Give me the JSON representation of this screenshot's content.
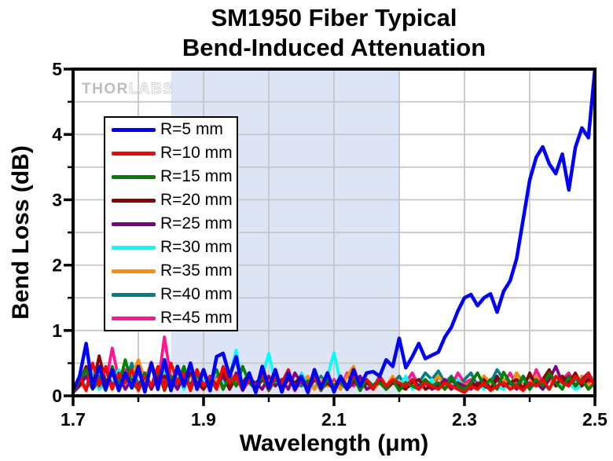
{
  "title": {
    "line1": "SM1950 Fiber Typical",
    "line2": "Bend-Induced Attenuation"
  },
  "watermark": {
    "part1": "THOR",
    "part2": "LABS"
  },
  "colors": {
    "background": "#FFFFFF",
    "axis": "#000000",
    "grid": "#C6C6C6",
    "band": "#DCE4F5",
    "watermark_solid": "#BDBDBD",
    "watermark_outline": "#CFCFCF"
  },
  "legend": {
    "entries": [
      {
        "label": "R=5 mm",
        "color": "#0000FF"
      },
      {
        "label": "R=10 mm",
        "color": "#FF0000"
      },
      {
        "label": "R=15 mm",
        "color": "#008000"
      },
      {
        "label": "R=20 mm",
        "color": "#8B0000"
      },
      {
        "label": "R=25 mm",
        "color": "#800080"
      },
      {
        "label": "R=30 mm",
        "color": "#00FFFF"
      },
      {
        "label": "R=35 mm",
        "color": "#FF8C00"
      },
      {
        "label": "R=40 mm",
        "color": "#008080"
      },
      {
        "label": "R=45 mm",
        "color": "#FF1493"
      }
    ]
  },
  "chart_data": {
    "type": "line",
    "title": "SM1950 Fiber Typical Bend-Induced Attenuation",
    "xlabel": "Wavelength (μm)",
    "ylabel": "Bend Loss (dB)",
    "xlim": [
      1.7,
      2.5
    ],
    "ylim": [
      0,
      5
    ],
    "x_major_ticks": [
      1.7,
      1.9,
      2.1,
      2.3,
      2.5
    ],
    "x_minor_ticks": [
      1.8,
      2.0,
      2.2,
      2.4
    ],
    "y_major_ticks": [
      0,
      1,
      2,
      3,
      4,
      5
    ],
    "y_minor_ticks": [
      0.5,
      1.5,
      2.5,
      3.5,
      4.5
    ],
    "x_tick_labels": [
      "1.7",
      "1.9",
      "2.1",
      "2.3",
      "2.5"
    ],
    "y_tick_labels": [
      "0",
      "1",
      "2",
      "3",
      "4",
      "5"
    ],
    "grid": {
      "on": true,
      "x_step": 0.1,
      "y_step": 0.5
    },
    "shaded_band": {
      "x_start": 1.85,
      "x_end": 2.2
    },
    "legend_position": "upper-left-inside",
    "x_start": 1.7,
    "x_step": 0.01,
    "series": [
      {
        "name": "R=5 mm",
        "color": "#0000FF",
        "stroke_width": 4.5,
        "values": [
          0.08,
          0.3,
          0.8,
          0.12,
          0.45,
          0.1,
          0.4,
          0.08,
          0.35,
          0.12,
          0.45,
          0.06,
          0.5,
          0.1,
          0.55,
          0.08,
          0.45,
          0.15,
          0.5,
          0.1,
          0.4,
          0.08,
          0.6,
          0.65,
          0.3,
          0.6,
          0.1,
          0.35,
          0.05,
          0.45,
          0.12,
          0.4,
          0.06,
          0.35,
          0.1,
          0.3,
          0.05,
          0.4,
          0.12,
          0.35,
          0.06,
          0.3,
          0.1,
          0.4,
          0.15,
          0.35,
          0.37,
          0.3,
          0.55,
          0.45,
          0.88,
          0.43,
          0.6,
          0.8,
          0.57,
          0.62,
          0.67,
          0.9,
          1.05,
          1.3,
          1.5,
          1.55,
          1.38,
          1.5,
          1.56,
          1.28,
          1.6,
          1.76,
          2.1,
          2.7,
          3.3,
          3.65,
          3.81,
          3.55,
          3.4,
          3.7,
          3.15,
          3.8,
          4.1,
          3.95,
          5.0
        ]
      },
      {
        "name": "R=10 mm",
        "color": "#FF0000",
        "stroke_width": 3.8,
        "values": [
          0.1,
          0.3,
          0.08,
          0.5,
          0.15,
          0.45,
          0.1,
          0.35,
          0.2,
          0.4,
          0.08,
          0.3,
          0.15,
          0.45,
          0.1,
          0.5,
          0.2,
          0.35,
          0.08,
          0.4,
          0.15,
          0.3,
          0.1,
          0.45,
          0.2,
          0.3,
          0.08,
          0.25,
          0.15,
          0.35,
          0.1,
          0.3,
          0.2,
          0.4,
          0.08,
          0.25,
          0.15,
          0.3,
          0.1,
          0.35,
          0.08,
          0.25,
          0.15,
          0.3,
          0.2,
          0.25,
          0.1,
          0.3,
          0.15,
          0.25,
          0.2,
          0.15,
          0.25,
          0.1,
          0.2,
          0.15,
          0.1,
          0.2,
          0.15,
          0.1,
          0.05,
          0.15,
          0.1,
          0.2,
          0.08,
          0.15,
          0.2,
          0.1,
          0.15,
          0.08,
          0.2,
          0.15,
          0.25,
          0.1,
          0.3,
          0.2,
          0.15,
          0.3,
          0.2,
          0.35,
          0.15
        ]
      },
      {
        "name": "R=15 mm",
        "color": "#008000",
        "stroke_width": 3.8,
        "values": [
          0.05,
          0.25,
          0.4,
          0.1,
          0.3,
          0.08,
          0.45,
          0.15,
          0.55,
          0.2,
          0.1,
          0.35,
          0.15,
          0.4,
          0.08,
          0.3,
          0.2,
          0.45,
          0.1,
          0.35,
          0.15,
          0.25,
          0.4,
          0.1,
          0.3,
          0.15,
          0.45,
          0.2,
          0.1,
          0.3,
          0.08,
          0.25,
          0.15,
          0.35,
          0.1,
          0.25,
          0.2,
          0.3,
          0.08,
          0.25,
          0.15,
          0.2,
          0.1,
          0.3,
          0.08,
          0.25,
          0.15,
          0.2,
          0.1,
          0.25,
          0.08,
          0.2,
          0.15,
          0.1,
          0.25,
          0.15,
          0.2,
          0.1,
          0.28,
          0.15,
          0.1,
          0.2,
          0.35,
          0.15,
          0.25,
          0.1,
          0.36,
          0.2,
          0.15,
          0.3,
          0.1,
          0.25,
          0.15,
          0.35,
          0.2,
          0.1,
          0.3,
          0.15,
          0.25,
          0.1,
          0.2
        ]
      },
      {
        "name": "R=20 mm",
        "color": "#8B0000",
        "stroke_width": 3.8,
        "values": [
          0.08,
          0.2,
          0.45,
          0.15,
          0.61,
          0.2,
          0.35,
          0.1,
          0.3,
          0.15,
          0.4,
          0.1,
          0.5,
          0.2,
          0.3,
          0.1,
          0.4,
          0.15,
          0.35,
          0.2,
          0.1,
          0.3,
          0.15,
          0.4,
          0.1,
          0.3,
          0.2,
          0.35,
          0.1,
          0.25,
          0.15,
          0.3,
          0.1,
          0.25,
          0.2,
          0.3,
          0.1,
          0.25,
          0.15,
          0.2,
          0.1,
          0.3,
          0.15,
          0.25,
          0.1,
          0.2,
          0.15,
          0.25,
          0.1,
          0.2,
          0.15,
          0.1,
          0.2,
          0.25,
          0.1,
          0.15,
          0.2,
          0.1,
          0.25,
          0.15,
          0.1,
          0.2,
          0.15,
          0.25,
          0.1,
          0.3,
          0.15,
          0.2,
          0.25,
          0.1,
          0.35,
          0.15,
          0.25,
          0.4,
          0.15,
          0.3,
          0.2,
          0.35,
          0.15,
          0.25,
          0.2
        ]
      },
      {
        "name": "R=25 mm",
        "color": "#800080",
        "stroke_width": 3.8,
        "values": [
          0.05,
          0.15,
          0.3,
          0.1,
          0.25,
          0.4,
          0.15,
          0.3,
          0.1,
          0.25,
          0.15,
          0.35,
          0.1,
          0.3,
          0.2,
          0.25,
          0.1,
          0.3,
          0.15,
          0.4,
          0.1,
          0.25,
          0.15,
          0.3,
          0.1,
          0.35,
          0.15,
          0.25,
          0.2,
          0.1,
          0.3,
          0.15,
          0.25,
          0.1,
          0.35,
          0.2,
          0.15,
          0.3,
          0.1,
          0.2,
          0.15,
          0.25,
          0.1,
          0.2,
          0.3,
          0.1,
          0.15,
          0.25,
          0.1,
          0.2,
          0.15,
          0.1,
          0.25,
          0.15,
          0.2,
          0.1,
          0.15,
          0.25,
          0.1,
          0.2,
          0.15,
          0.1,
          0.2,
          0.15,
          0.1,
          0.25,
          0.15,
          0.2,
          0.1,
          0.3,
          0.15,
          0.2,
          0.1,
          0.25,
          0.45,
          0.2,
          0.3,
          0.15,
          0.25,
          0.35,
          0.15
        ]
      },
      {
        "name": "R=30 mm",
        "color": "#00FFFF",
        "stroke_width": 3.8,
        "values": [
          0.1,
          0.25,
          0.15,
          0.35,
          0.1,
          0.3,
          0.2,
          0.4,
          0.15,
          0.3,
          0.1,
          0.35,
          0.15,
          0.25,
          0.4,
          0.2,
          0.3,
          0.1,
          0.35,
          0.15,
          0.25,
          0.1,
          0.4,
          0.2,
          0.3,
          0.7,
          0.15,
          0.35,
          0.1,
          0.3,
          0.65,
          0.2,
          0.15,
          0.3,
          0.1,
          0.35,
          0.15,
          0.25,
          0.1,
          0.3,
          0.66,
          0.2,
          0.15,
          0.35,
          0.1,
          0.25,
          0.15,
          0.3,
          0.1,
          0.25,
          0.15,
          0.3,
          0.1,
          0.2,
          0.15,
          0.25,
          0.1,
          0.2,
          0.15,
          0.25,
          0.1,
          0.15,
          0.2,
          0.1,
          0.25,
          0.15,
          0.1,
          0.2,
          0.15,
          0.25,
          0.1,
          0.2,
          0.15,
          0.1,
          0.25,
          0.15,
          0.2,
          0.1,
          0.15,
          0.25,
          0.3
        ]
      },
      {
        "name": "R=35 mm",
        "color": "#FF8C00",
        "stroke_width": 3.8,
        "values": [
          0.08,
          0.2,
          0.1,
          0.3,
          0.15,
          0.25,
          0.1,
          0.35,
          0.2,
          0.3,
          0.55,
          0.25,
          0.52,
          0.15,
          0.35,
          0.2,
          0.45,
          0.15,
          0.3,
          0.2,
          0.35,
          0.15,
          0.25,
          0.1,
          0.3,
          0.2,
          0.15,
          0.35,
          0.1,
          0.25,
          0.2,
          0.3,
          0.1,
          0.25,
          0.15,
          0.2,
          0.3,
          0.1,
          0.25,
          0.15,
          0.2,
          0.1,
          0.3,
          0.45,
          0.15,
          0.25,
          0.1,
          0.2,
          0.15,
          0.3,
          0.1,
          0.2,
          0.15,
          0.25,
          0.1,
          0.2,
          0.3,
          0.15,
          0.1,
          0.25,
          0.15,
          0.2,
          0.1,
          0.3,
          0.2,
          0.15,
          0.25,
          0.1,
          0.35,
          0.15,
          0.2,
          0.3,
          0.1,
          0.25,
          0.15,
          0.3,
          0.2,
          0.1,
          0.3,
          0.15,
          0.25
        ]
      },
      {
        "name": "R=40 mm",
        "color": "#008080",
        "stroke_width": 3.8,
        "values": [
          0.1,
          0.2,
          0.15,
          0.3,
          0.1,
          0.25,
          0.15,
          0.35,
          0.2,
          0.5,
          0.15,
          0.3,
          0.1,
          0.35,
          0.2,
          0.25,
          0.15,
          0.4,
          0.1,
          0.3,
          0.2,
          0.25,
          0.1,
          0.35,
          0.15,
          0.3,
          0.1,
          0.25,
          0.2,
          0.3,
          0.15,
          0.25,
          0.1,
          0.3,
          0.2,
          0.15,
          0.25,
          0.1,
          0.3,
          0.15,
          0.2,
          0.25,
          0.1,
          0.3,
          0.15,
          0.2,
          0.1,
          0.25,
          0.15,
          0.2,
          0.3,
          0.15,
          0.25,
          0.2,
          0.35,
          0.25,
          0.38,
          0.2,
          0.3,
          0.15,
          0.25,
          0.35,
          0.15,
          0.3,
          0.2,
          0.4,
          0.25,
          0.15,
          0.35,
          0.2,
          0.3,
          0.15,
          0.25,
          0.35,
          0.2,
          0.3,
          0.15,
          0.25,
          0.2,
          0.3,
          0.25
        ]
      },
      {
        "name": "R=45 mm",
        "color": "#FF1493",
        "stroke_width": 3.8,
        "values": [
          0.05,
          0.2,
          0.35,
          0.15,
          0.3,
          0.2,
          0.73,
          0.25,
          0.4,
          0.15,
          0.35,
          0.2,
          0.45,
          0.15,
          0.9,
          0.25,
          0.35,
          0.15,
          0.3,
          0.2,
          0.4,
          0.15,
          0.3,
          0.1,
          0.35,
          0.2,
          0.15,
          0.3,
          0.1,
          0.25,
          0.2,
          0.35,
          0.1,
          0.3,
          0.15,
          0.25,
          0.1,
          0.3,
          0.2,
          0.15,
          0.25,
          0.1,
          0.35,
          0.15,
          0.25,
          0.2,
          0.1,
          0.3,
          0.15,
          0.25,
          0.1,
          0.2,
          0.35,
          0.15,
          0.25,
          0.1,
          0.3,
          0.2,
          0.15,
          0.35,
          0.2,
          0.25,
          0.15,
          0.3,
          0.1,
          0.25,
          0.2,
          0.35,
          0.15,
          0.25,
          0.1,
          0.4,
          0.2,
          0.3,
          0.15,
          0.25,
          0.35,
          0.15,
          0.3,
          0.2,
          0.15
        ]
      }
    ]
  }
}
